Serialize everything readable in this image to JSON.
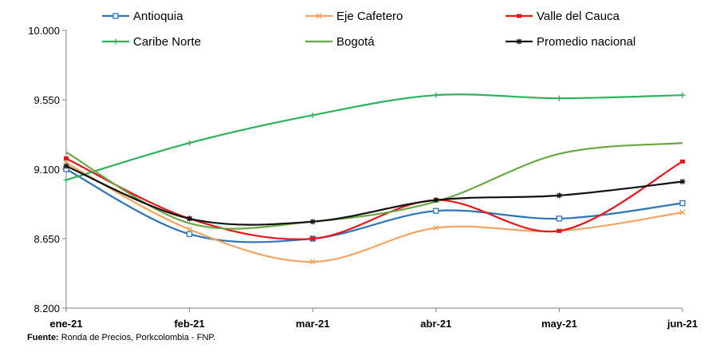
{
  "chart_data": {
    "type": "line",
    "categories": [
      "ene-21",
      "feb-21",
      "mar-21",
      "abr-21",
      "may-21",
      "jun-21"
    ],
    "y_ticks": [
      "8.200",
      "8.650",
      "9.100",
      "9.550",
      "10.000"
    ],
    "ylim": [
      8200,
      10000
    ],
    "grid": false,
    "legend_position": "top",
    "series": [
      {
        "name": "Antioquia",
        "color": "#2E75B6",
        "marker": "square",
        "values": [
          9100,
          8680,
          8650,
          8830,
          8780,
          8880
        ]
      },
      {
        "name": "Eje Cafetero",
        "color": "#F4A460",
        "marker": "x",
        "values": [
          9140,
          8710,
          8500,
          8720,
          8700,
          8820
        ]
      },
      {
        "name": "Valle del Cauca",
        "color": "#E8161B",
        "marker": "dash",
        "values": [
          9170,
          8780,
          8650,
          8900,
          8700,
          9150
        ]
      },
      {
        "name": "Caribe Norte",
        "color": "#2DB25D",
        "marker": "plus",
        "values": [
          9030,
          9270,
          9450,
          9580,
          9560,
          9580
        ]
      },
      {
        "name": "Bogotá",
        "color": "#6BA843",
        "marker": "none",
        "values": [
          9210,
          8750,
          8760,
          8890,
          9200,
          9270
        ]
      },
      {
        "name": "Promedio nacional",
        "color": "#111111",
        "marker": "star",
        "values": [
          9120,
          8780,
          8760,
          8900,
          8930,
          9020
        ]
      }
    ]
  },
  "source": {
    "label": "Fuente:",
    "text": " Ronda de Precios, Porkcolombia   - FNP."
  }
}
